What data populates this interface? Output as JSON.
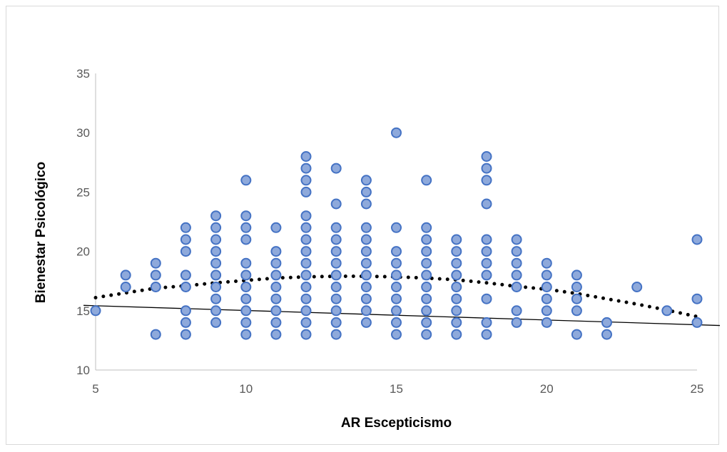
{
  "chart_data": {
    "type": "scatter",
    "title": "",
    "xlabel": "AR Escepticismo",
    "ylabel": "Bienestar Psicológico",
    "xlim": [
      5,
      25
    ],
    "ylim": [
      10,
      35
    ],
    "x_ticks": [
      5,
      10,
      15,
      20,
      25
    ],
    "y_ticks": [
      10,
      15,
      20,
      25,
      30,
      35
    ],
    "grid": false,
    "legend": "none",
    "colors": {
      "marker_fill": "#8ea9db",
      "marker_edge": "#4472c4",
      "trend": "#000000"
    },
    "points": [
      [
        5,
        15
      ],
      [
        6,
        17
      ],
      [
        6,
        18
      ],
      [
        7,
        13
      ],
      [
        7,
        17
      ],
      [
        7,
        18
      ],
      [
        7,
        19
      ],
      [
        8,
        13
      ],
      [
        8,
        14
      ],
      [
        8,
        15
      ],
      [
        8,
        17
      ],
      [
        8,
        18
      ],
      [
        8,
        20
      ],
      [
        8,
        21
      ],
      [
        8,
        22
      ],
      [
        9,
        14
      ],
      [
        9,
        15
      ],
      [
        9,
        16
      ],
      [
        9,
        17
      ],
      [
        9,
        18
      ],
      [
        9,
        19
      ],
      [
        9,
        20
      ],
      [
        9,
        21
      ],
      [
        9,
        22
      ],
      [
        9,
        23
      ],
      [
        10,
        13
      ],
      [
        10,
        14
      ],
      [
        10,
        15
      ],
      [
        10,
        16
      ],
      [
        10,
        17
      ],
      [
        10,
        18
      ],
      [
        10,
        19
      ],
      [
        10,
        21
      ],
      [
        10,
        22
      ],
      [
        10,
        23
      ],
      [
        10,
        26
      ],
      [
        11,
        13
      ],
      [
        11,
        14
      ],
      [
        11,
        15
      ],
      [
        11,
        16
      ],
      [
        11,
        17
      ],
      [
        11,
        18
      ],
      [
        11,
        19
      ],
      [
        11,
        20
      ],
      [
        11,
        22
      ],
      [
        12,
        13
      ],
      [
        12,
        14
      ],
      [
        12,
        15
      ],
      [
        12,
        16
      ],
      [
        12,
        17
      ],
      [
        12,
        18
      ],
      [
        12,
        19
      ],
      [
        12,
        20
      ],
      [
        12,
        21
      ],
      [
        12,
        22
      ],
      [
        12,
        23
      ],
      [
        12,
        25
      ],
      [
        12,
        26
      ],
      [
        12,
        27
      ],
      [
        12,
        28
      ],
      [
        13,
        13
      ],
      [
        13,
        14
      ],
      [
        13,
        15
      ],
      [
        13,
        16
      ],
      [
        13,
        17
      ],
      [
        13,
        18
      ],
      [
        13,
        19
      ],
      [
        13,
        20
      ],
      [
        13,
        21
      ],
      [
        13,
        22
      ],
      [
        13,
        24
      ],
      [
        13,
        27
      ],
      [
        14,
        14
      ],
      [
        14,
        15
      ],
      [
        14,
        16
      ],
      [
        14,
        17
      ],
      [
        14,
        18
      ],
      [
        14,
        19
      ],
      [
        14,
        20
      ],
      [
        14,
        21
      ],
      [
        14,
        22
      ],
      [
        14,
        24
      ],
      [
        14,
        25
      ],
      [
        14,
        26
      ],
      [
        15,
        13
      ],
      [
        15,
        14
      ],
      [
        15,
        15
      ],
      [
        15,
        16
      ],
      [
        15,
        17
      ],
      [
        15,
        18
      ],
      [
        15,
        19
      ],
      [
        15,
        20
      ],
      [
        15,
        22
      ],
      [
        15,
        30
      ],
      [
        16,
        13
      ],
      [
        16,
        14
      ],
      [
        16,
        15
      ],
      [
        16,
        16
      ],
      [
        16,
        17
      ],
      [
        16,
        18
      ],
      [
        16,
        19
      ],
      [
        16,
        20
      ],
      [
        16,
        21
      ],
      [
        16,
        22
      ],
      [
        16,
        26
      ],
      [
        17,
        13
      ],
      [
        17,
        14
      ],
      [
        17,
        15
      ],
      [
        17,
        16
      ],
      [
        17,
        17
      ],
      [
        17,
        18
      ],
      [
        17,
        19
      ],
      [
        17,
        20
      ],
      [
        17,
        21
      ],
      [
        18,
        13
      ],
      [
        18,
        14
      ],
      [
        18,
        16
      ],
      [
        18,
        18
      ],
      [
        18,
        19
      ],
      [
        18,
        20
      ],
      [
        18,
        21
      ],
      [
        18,
        24
      ],
      [
        18,
        26
      ],
      [
        18,
        27
      ],
      [
        18,
        28
      ],
      [
        19,
        14
      ],
      [
        19,
        15
      ],
      [
        19,
        17
      ],
      [
        19,
        18
      ],
      [
        19,
        19
      ],
      [
        19,
        20
      ],
      [
        19,
        21
      ],
      [
        20,
        14
      ],
      [
        20,
        15
      ],
      [
        20,
        16
      ],
      [
        20,
        17
      ],
      [
        20,
        18
      ],
      [
        20,
        19
      ],
      [
        21,
        13
      ],
      [
        21,
        15
      ],
      [
        21,
        16
      ],
      [
        21,
        17
      ],
      [
        21,
        18
      ],
      [
        22,
        13
      ],
      [
        22,
        14
      ],
      [
        23,
        17
      ],
      [
        24,
        15
      ],
      [
        25,
        14
      ],
      [
        25,
        16
      ],
      [
        25,
        21
      ]
    ],
    "trendlines": [
      {
        "kind": "linear",
        "style": "solid",
        "x": [
          4.6,
          25.8
        ],
        "y": [
          15.45,
          13.75
        ]
      },
      {
        "kind": "polynomial",
        "style": "dotted",
        "x": [
          5,
          6,
          7,
          8,
          9,
          10,
          11,
          12,
          13,
          14,
          15,
          16,
          17,
          18,
          19,
          20,
          21,
          22,
          23,
          24,
          25
        ],
        "y": [
          16.1,
          16.5,
          16.9,
          17.1,
          17.35,
          17.55,
          17.75,
          17.85,
          17.9,
          17.9,
          17.85,
          17.75,
          17.6,
          17.35,
          17.05,
          16.8,
          16.45,
          16.0,
          15.55,
          15.05,
          14.5
        ]
      }
    ]
  }
}
